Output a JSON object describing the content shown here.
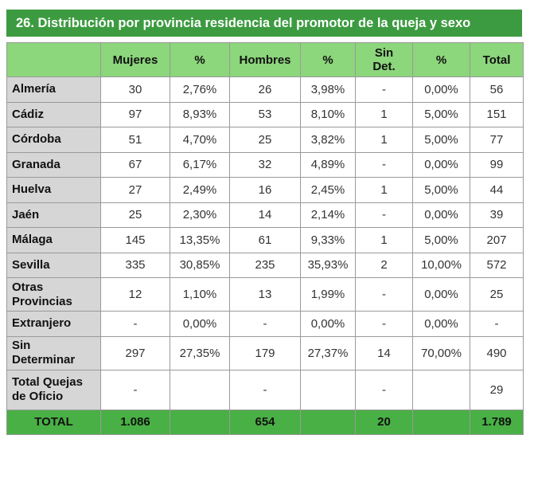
{
  "title": "26. Distribución por provincia residencia del promotor de la queja y sexo",
  "headers": {
    "corner": "",
    "mujeres": "Mujeres",
    "pct1": "%",
    "hombres": "Hombres",
    "pct2": "%",
    "sin_det_l1": "Sin",
    "sin_det_l2": "Det.",
    "pct3": "%",
    "total": "Total"
  },
  "rows": [
    {
      "prov_l1": "Almería",
      "prov_l2": "",
      "mujeres": "30",
      "pct_m": "2,76%",
      "hombres": "26",
      "pct_h": "3,98%",
      "sin_det": "-",
      "pct_s": "0,00%",
      "total": "56"
    },
    {
      "prov_l1": "Cádiz",
      "prov_l2": "",
      "mujeres": "97",
      "pct_m": "8,93%",
      "hombres": "53",
      "pct_h": "8,10%",
      "sin_det": "1",
      "pct_s": "5,00%",
      "total": "151"
    },
    {
      "prov_l1": "Córdoba",
      "prov_l2": "",
      "mujeres": "51",
      "pct_m": "4,70%",
      "hombres": "25",
      "pct_h": "3,82%",
      "sin_det": "1",
      "pct_s": "5,00%",
      "total": "77"
    },
    {
      "prov_l1": "Granada",
      "prov_l2": "",
      "mujeres": "67",
      "pct_m": "6,17%",
      "hombres": "32",
      "pct_h": "4,89%",
      "sin_det": "-",
      "pct_s": "0,00%",
      "total": "99"
    },
    {
      "prov_l1": "Huelva",
      "prov_l2": "",
      "mujeres": "27",
      "pct_m": "2,49%",
      "hombres": "16",
      "pct_h": "2,45%",
      "sin_det": "1",
      "pct_s": "5,00%",
      "total": "44"
    },
    {
      "prov_l1": "Jaén",
      "prov_l2": "",
      "mujeres": "25",
      "pct_m": "2,30%",
      "hombres": "14",
      "pct_h": "2,14%",
      "sin_det": "-",
      "pct_s": "0,00%",
      "total": "39"
    },
    {
      "prov_l1": "Málaga",
      "prov_l2": "",
      "mujeres": "145",
      "pct_m": "13,35%",
      "hombres": "61",
      "pct_h": "9,33%",
      "sin_det": "1",
      "pct_s": "5,00%",
      "total": "207"
    },
    {
      "prov_l1": "Sevilla",
      "prov_l2": "",
      "mujeres": "335",
      "pct_m": "30,85%",
      "hombres": "235",
      "pct_h": "35,93%",
      "sin_det": "2",
      "pct_s": "10,00%",
      "total": "572"
    },
    {
      "prov_l1": "Otras",
      "prov_l2": "Provincias",
      "mujeres": "12",
      "pct_m": "1,10%",
      "hombres": "13",
      "pct_h": "1,99%",
      "sin_det": "-",
      "pct_s": "0,00%",
      "total": "25"
    },
    {
      "prov_l1": "Extranjero",
      "prov_l2": "",
      "mujeres": "-",
      "pct_m": "0,00%",
      "hombres": "-",
      "pct_h": "0,00%",
      "sin_det": "-",
      "pct_s": "0,00%",
      "total": "-"
    },
    {
      "prov_l1": "Sin",
      "prov_l2": "Determinar",
      "mujeres": "297",
      "pct_m": "27,35%",
      "hombres": "179",
      "pct_h": "27,37%",
      "sin_det": "14",
      "pct_s": "70,00%",
      "total": "490"
    },
    {
      "prov_l1": "Total Quejas",
      "prov_l2": "de Oficio",
      "mujeres": "-",
      "pct_m": "",
      "hombres": "-",
      "pct_h": "",
      "sin_det": "-",
      "pct_s": "",
      "total": "29"
    }
  ],
  "footer": {
    "label": "TOTAL",
    "mujeres": "1.086",
    "pct_m": "",
    "hombres": "654",
    "pct_h": "",
    "sin_det": "20",
    "pct_s": "",
    "total": "1.789"
  },
  "colors": {
    "title_bg": "#3c9b40",
    "header_bg": "#8cd67c",
    "row_label_bg": "#d6d6d6",
    "footer_bg": "#49b045"
  }
}
